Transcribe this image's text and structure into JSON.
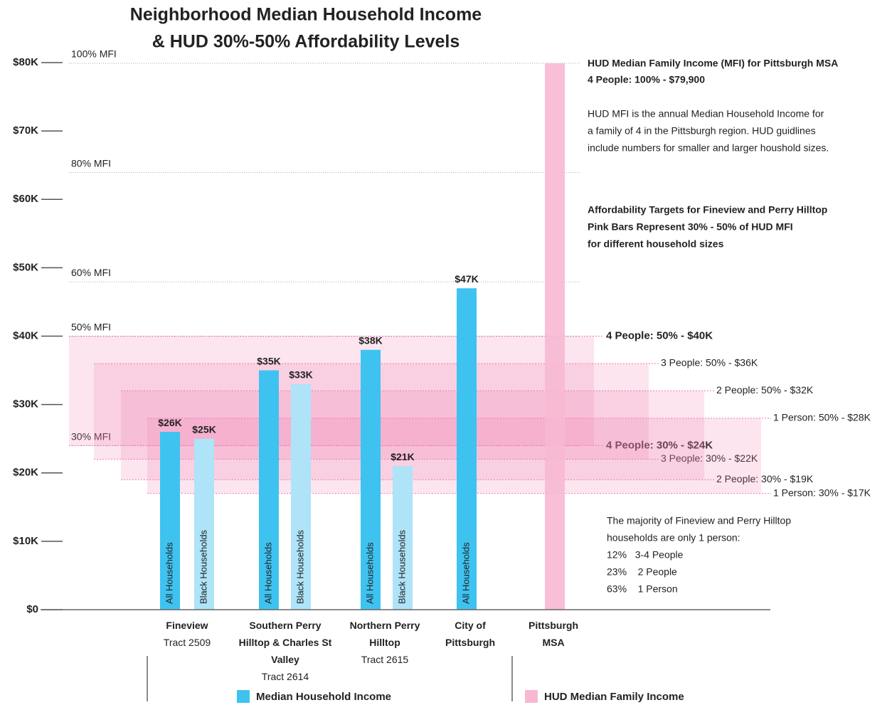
{
  "chart_data": {
    "type": "bar",
    "title_lines": [
      "Neighborhood Median Household Income",
      "& HUD 30%-50% Affordability Levels"
    ],
    "ylim": [
      0,
      80000
    ],
    "yticks": [
      {
        "value": 0,
        "label": "$0"
      },
      {
        "value": 10000,
        "label": "$10K"
      },
      {
        "value": 20000,
        "label": "$20K"
      },
      {
        "value": 30000,
        "label": "$30K"
      },
      {
        "value": 40000,
        "label": "$40K"
      },
      {
        "value": 50000,
        "label": "$50K"
      },
      {
        "value": 60000,
        "label": "$60K"
      },
      {
        "value": 70000,
        "label": "$70K"
      },
      {
        "value": 80000,
        "label": "$80K"
      }
    ],
    "categories": [
      "Fineview",
      "Southern Perry Hilltop & Charles St Valley",
      "Northern Perry Hilltop",
      "City of Pittsburgh",
      "Pittsburgh MSA"
    ],
    "category_notes": [
      "Tract 2509",
      "Tract 2614",
      "Tract 2615",
      null,
      null
    ],
    "series": [
      {
        "name": "All Households",
        "color": "#3ec3f0",
        "values": [
          26000,
          35000,
          38000,
          47000,
          null
        ],
        "value_labels": [
          "$26K",
          "$35K",
          "$38K",
          "$47K",
          null
        ]
      },
      {
        "name": "Black Households",
        "color": "#aee3f8",
        "values": [
          25000,
          33000,
          21000,
          null,
          null
        ],
        "value_labels": [
          "$25K",
          "$33K",
          "$21K",
          null,
          null
        ]
      }
    ],
    "msa_bar": {
      "value": 79900,
      "color": "#f7b8d3"
    },
    "mfi_levels": [
      {
        "label": "100% MFI",
        "value": 79900
      },
      {
        "label": "80% MFI",
        "value": 63920
      },
      {
        "label": "60% MFI",
        "value": 47940
      },
      {
        "label": "50% MFI",
        "value": 39950
      },
      {
        "label": "30% MFI",
        "value": 23970
      }
    ],
    "affordability": [
      {
        "low": 24000,
        "high": 40000,
        "low_label": "4 People: 30% - $24K",
        "high_label": "4 People: 50% - $40K",
        "bold": true
      },
      {
        "low": 22000,
        "high": 36000,
        "low_label": "3 People: 30% - $22K",
        "high_label": "3 People: 50% - $36K",
        "bold": false
      },
      {
        "low": 19000,
        "high": 32000,
        "low_label": "2 People: 30% - $19K",
        "high_label": "2 People: 50% - $32K",
        "bold": false
      },
      {
        "low": 17000,
        "high": 28000,
        "low_label": "1 Person: 30% - $17K",
        "high_label": "1 Person: 50% - $28K",
        "bold": false
      }
    ],
    "band_color": "#f07bb0",
    "notes": [
      {
        "bold": true,
        "lines": [
          "HUD Median Family Income (MFI) for Pittsburgh MSA",
          "4 People: 100% - $79,900"
        ]
      },
      {
        "bold": false,
        "lines": [
          "HUD MFI is the annual Median Household Income for",
          "a family of 4 in the Pittsburgh region. HUD guidlines",
          "include numbers for smaller and larger houshold sizes."
        ]
      },
      {
        "bold": true,
        "lines": [
          "Affordability Targets for Fineview and Perry Hilltop",
          "Pink Bars Represent 30% - 50% of HUD MFI",
          "for different household sizes"
        ]
      },
      {
        "bold": false,
        "lines": [
          "The majority of Fineview and Perry Hilltop",
          "households are only 1 person:",
          "12%   3-4 People",
          "23%    2 People",
          "63%    1 Person"
        ]
      }
    ],
    "legend": [
      {
        "label": "Median Household Income",
        "color": "#3ec3f0"
      },
      {
        "label": "HUD Median Family Income",
        "color": "#f7b8d3"
      }
    ]
  }
}
